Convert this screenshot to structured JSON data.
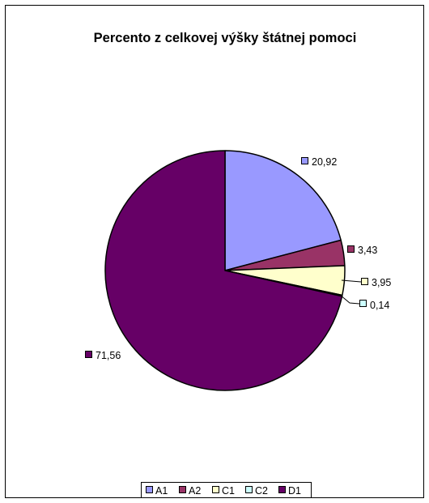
{
  "chart_data": {
    "type": "pie",
    "title": "Percento z celkovej výšky štátnej pomoci",
    "categories": [
      "A1",
      "A2",
      "C1",
      "C2",
      "D1"
    ],
    "values": [
      20.92,
      3.43,
      3.95,
      0.14,
      71.56
    ],
    "value_labels": [
      "20,92",
      "3,43",
      "3,95",
      "0,14",
      "71,56"
    ],
    "colors": [
      "#9999FF",
      "#993366",
      "#FFFFCC",
      "#CCFFFF",
      "#660066"
    ],
    "legend_placement": "bottom",
    "start_angle": "12 o'clock",
    "direction": "clockwise"
  }
}
